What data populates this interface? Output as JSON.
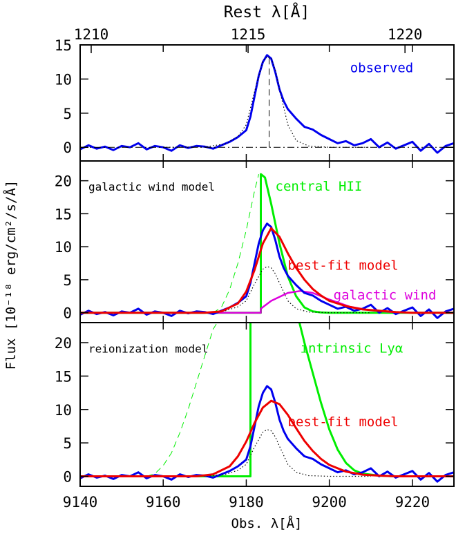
{
  "chart_data": {
    "type": "line",
    "top_axis_label": "Rest λ[Å]",
    "top_ticks": [
      1210,
      1215,
      1220
    ],
    "xlabel": "Obs. λ[Å]",
    "xlim": [
      9140,
      9230
    ],
    "x_ticks": [
      9140,
      9160,
      9180,
      9200,
      9220
    ],
    "ylabel": "Flux [10⁻¹⁸ erg/cm²/s/Å]",
    "panels": [
      {
        "id": "observed",
        "ylim": [
          -2,
          15
        ],
        "y_ticks": [
          0,
          5,
          10,
          15
        ],
        "annotations": [
          {
            "text": "observed",
            "color": "#0000ee",
            "x": 9205,
            "y": 11
          }
        ],
        "series": [
          {
            "name": "observed",
            "color": "#0000ee",
            "width": 3,
            "style": "solid",
            "x": [
              9140,
              9142,
              9144,
              9146,
              9148,
              9150,
              9152,
              9154,
              9156,
              9158,
              9160,
              9162,
              9164,
              9166,
              9168,
              9170,
              9172,
              9174,
              9176,
              9178,
              9180,
              9181,
              9182,
              9183,
              9184,
              9185,
              9186,
              9187,
              9188,
              9189,
              9190,
              9192,
              9194,
              9196,
              9198,
              9200,
              9202,
              9204,
              9206,
              9208,
              9210,
              9212,
              9214,
              9216,
              9218,
              9220,
              9222,
              9224,
              9226,
              9228,
              9230
            ],
            "y": [
              -0.3,
              0.3,
              -0.2,
              0.1,
              -0.4,
              0.2,
              0.0,
              0.6,
              -0.3,
              0.2,
              0.0,
              -0.5,
              0.3,
              -0.1,
              0.2,
              0.1,
              -0.2,
              0.3,
              0.8,
              1.5,
              2.5,
              4.5,
              7.5,
              10.5,
              12.5,
              13.5,
              13.0,
              11.0,
              8.5,
              6.8,
              5.6,
              4.2,
              3.0,
              2.6,
              1.8,
              1.2,
              0.6,
              0.9,
              0.3,
              0.6,
              1.2,
              0.0,
              0.7,
              -0.2,
              0.3,
              0.8,
              -0.5,
              0.5,
              -0.8,
              0.2,
              0.6
            ]
          },
          {
            "name": "",
            "color": "#000000",
            "width": 1.2,
            "style": "dotted",
            "x": [
              9160,
              9170,
              9175,
              9178,
              9180,
              9182,
              9184,
              9185,
              9186,
              9187,
              9188,
              9190,
              9192,
              9195,
              9200,
              9210
            ],
            "y": [
              0,
              0.05,
              0.5,
              1.6,
              3.3,
              8.2,
              12.6,
              13.3,
              13.0,
              11.3,
              8.5,
              3.3,
              1.0,
              0.2,
              0.0,
              0.0
            ]
          },
          {
            "name": "",
            "color": "#000000",
            "width": 1,
            "style": "dashdot",
            "x": [
              9140,
              9230
            ],
            "y": [
              0,
              0
            ]
          },
          {
            "name": "",
            "color": "#000000",
            "width": 1,
            "style": "dashed",
            "x": [
              9185.5,
              9185.5
            ],
            "y": [
              0,
              13.3
            ]
          }
        ]
      },
      {
        "id": "galactic-wind",
        "ylim": [
          -1.5,
          23
        ],
        "y_ticks": [
          0,
          5,
          10,
          15,
          20
        ],
        "annotations": [
          {
            "text": "galactic wind model",
            "color": "#000000",
            "x": 9142,
            "y": 18.5,
            "small": true
          },
          {
            "text": "central HII",
            "color": "#00ee00",
            "x": 9187,
            "y": 18.5
          },
          {
            "text": "best-fit model",
            "color": "#ee0000",
            "x": 9190,
            "y": 6.5
          },
          {
            "text": "galactic wind",
            "color": "#dd00dd",
            "x": 9201,
            "y": 2.0
          }
        ],
        "series": [
          {
            "name": "central HII",
            "color": "#00ee00",
            "width": 1,
            "style": "dashed",
            "x": [
              9172,
              9174,
              9176,
              9178,
              9180,
              9182,
              9183
            ],
            "y": [
              0,
              0.8,
              3.5,
              7.5,
              12.5,
              18.5,
              21
            ]
          },
          {
            "name": "central HII",
            "color": "#00ee00",
            "width": 3,
            "style": "solid",
            "x": [
              9140,
              9183.5,
              9183.5,
              9184.5,
              9186,
              9188,
              9190,
              9192,
              9194,
              9196,
              9198,
              9200,
              9230
            ],
            "y": [
              0,
              0,
              21,
              20.5,
              16.5,
              10.5,
              5.5,
              2.5,
              0.8,
              0.2,
              0.05,
              0,
              0
            ]
          },
          {
            "name": "galactic wind",
            "color": "#dd00dd",
            "width": 2.5,
            "style": "solid",
            "x": [
              9140,
              9183.5,
              9183.5,
              9186,
              9190,
              9193,
              9196,
              9200,
              9205,
              9210,
              9215,
              9220,
              9230
            ],
            "y": [
              0,
              0,
              0.6,
              1.8,
              3.0,
              3.3,
              3.0,
              2.0,
              0.9,
              0.35,
              0.1,
              0,
              0
            ]
          },
          {
            "name": "observed",
            "color": "#0000ee",
            "width": 3,
            "style": "solid",
            "x": [
              9140,
              9142,
              9144,
              9146,
              9148,
              9150,
              9152,
              9154,
              9156,
              9158,
              9160,
              9162,
              9164,
              9166,
              9168,
              9170,
              9172,
              9174,
              9176,
              9178,
              9180,
              9181,
              9182,
              9183,
              9184,
              9185,
              9186,
              9187,
              9188,
              9189,
              9190,
              9192,
              9194,
              9196,
              9198,
              9200,
              9202,
              9204,
              9206,
              9208,
              9210,
              9212,
              9214,
              9216,
              9218,
              9220,
              9222,
              9224,
              9226,
              9228,
              9230
            ],
            "y": [
              -0.3,
              0.3,
              -0.2,
              0.1,
              -0.4,
              0.2,
              0.0,
              0.6,
              -0.3,
              0.2,
              0.0,
              -0.5,
              0.3,
              -0.1,
              0.2,
              0.1,
              -0.2,
              0.3,
              0.8,
              1.5,
              2.5,
              4.5,
              7.5,
              10.5,
              12.5,
              13.5,
              13.0,
              11.0,
              8.5,
              6.8,
              5.6,
              4.2,
              3.0,
              2.6,
              1.8,
              1.2,
              0.6,
              0.9,
              0.3,
              0.6,
              1.2,
              0.0,
              0.7,
              -0.2,
              0.3,
              0.8,
              -0.5,
              0.5,
              -0.8,
              0.2,
              0.6
            ]
          },
          {
            "name": "",
            "color": "#000000",
            "width": 1.2,
            "style": "dotted",
            "x": [
              9160,
              9170,
              9175,
              9178,
              9180,
              9182,
              9184,
              9185,
              9186,
              9187,
              9188,
              9190,
              9192,
              9195,
              9200,
              9210
            ],
            "y": [
              0,
              0.02,
              0.3,
              0.9,
              1.8,
              4.4,
              6.6,
              7.0,
              6.8,
              5.9,
              4.5,
              1.8,
              0.6,
              0.1,
              0,
              0
            ]
          },
          {
            "name": "best-fit model",
            "color": "#ee0000",
            "width": 3,
            "style": "solid",
            "x": [
              9140,
              9170,
              9174,
              9178,
              9180,
              9182,
              9184,
              9186,
              9188,
              9190,
              9192,
              9194,
              9196,
              9198,
              9200,
              9204,
              9208,
              9212,
              9216,
              9220,
              9230
            ],
            "y": [
              0,
              0,
              0.2,
              1.4,
              3.2,
              6.5,
              10.5,
              12.8,
              11.5,
              9.0,
              6.8,
              5.0,
              3.6,
              2.6,
              1.8,
              1.0,
              0.5,
              0.3,
              0.1,
              0,
              0
            ]
          }
        ]
      },
      {
        "id": "reionization",
        "ylim": [
          -1.5,
          23
        ],
        "y_ticks": [
          0,
          5,
          10,
          15,
          20
        ],
        "annotations": [
          {
            "text": "reionization model",
            "color": "#000000",
            "x": 9142,
            "y": 18.5,
            "small": true
          },
          {
            "text": "intrinsic Lyα",
            "color": "#00ee00",
            "x": 9193,
            "y": 18.5
          },
          {
            "text": "best-fit model",
            "color": "#ee0000",
            "x": 9190,
            "y": 7.5
          }
        ],
        "series": [
          {
            "name": "intrinsic Lyα",
            "color": "#00ee00",
            "width": 1,
            "style": "dashed",
            "x": [
              9156,
              9158,
              9160,
              9162,
              9164,
              9166,
              9168,
              9170,
              9172,
              9173
            ],
            "y": [
              0,
              0.4,
              1.6,
              3.5,
              6.5,
              10.0,
              14.0,
              18.0,
              22.0,
              23.0
            ]
          },
          {
            "name": "intrinsic Lyα",
            "color": "#00ee00",
            "width": 3,
            "style": "solid",
            "x": [
              9140,
              9181,
              9181,
              9181.2
            ],
            "y": [
              0,
              0,
              23,
              23
            ]
          },
          {
            "name": "intrinsic Lyα",
            "color": "#00ee00",
            "width": 3,
            "style": "solid",
            "x": [
              9192.8,
              9194,
              9196,
              9198,
              9200,
              9202,
              9204,
              9206,
              9208,
              9212,
              9216,
              9220,
              9230
            ],
            "y": [
              23,
              20.0,
              15.5,
              11.0,
              7.0,
              4.0,
              2.0,
              0.9,
              0.4,
              0.1,
              0,
              0,
              0
            ]
          },
          {
            "name": "observed",
            "color": "#0000ee",
            "width": 3,
            "style": "solid",
            "x": [
              9140,
              9142,
              9144,
              9146,
              9148,
              9150,
              9152,
              9154,
              9156,
              9158,
              9160,
              9162,
              9164,
              9166,
              9168,
              9170,
              9172,
              9174,
              9176,
              9178,
              9180,
              9181,
              9182,
              9183,
              9184,
              9185,
              9186,
              9187,
              9188,
              9189,
              9190,
              9192,
              9194,
              9196,
              9198,
              9200,
              9202,
              9204,
              9206,
              9208,
              9210,
              9212,
              9214,
              9216,
              9218,
              9220,
              9222,
              9224,
              9226,
              9228,
              9230
            ],
            "y": [
              -0.3,
              0.3,
              -0.2,
              0.1,
              -0.4,
              0.2,
              0.0,
              0.6,
              -0.3,
              0.2,
              0.0,
              -0.5,
              0.3,
              -0.1,
              0.2,
              0.1,
              -0.2,
              0.3,
              0.8,
              1.5,
              2.5,
              4.5,
              7.5,
              10.5,
              12.5,
              13.5,
              13.0,
              11.0,
              8.5,
              6.8,
              5.6,
              4.2,
              3.0,
              2.6,
              1.8,
              1.2,
              0.6,
              0.9,
              0.3,
              0.6,
              1.2,
              0.0,
              0.7,
              -0.2,
              0.3,
              0.8,
              -0.5,
              0.5,
              -0.8,
              0.2,
              0.6
            ]
          },
          {
            "name": "",
            "color": "#000000",
            "width": 1.2,
            "style": "dotted",
            "x": [
              9160,
              9170,
              9175,
              9178,
              9180,
              9182,
              9184,
              9185,
              9186,
              9187,
              9188,
              9190,
              9192,
              9195,
              9200,
              9210
            ],
            "y": [
              0,
              0.02,
              0.3,
              0.9,
              1.8,
              4.4,
              6.6,
              7.0,
              6.8,
              5.9,
              4.5,
              1.8,
              0.6,
              0.1,
              0,
              0
            ]
          },
          {
            "name": "best-fit model",
            "color": "#ee0000",
            "width": 3,
            "style": "solid",
            "x": [
              9140,
              9168,
              9172,
              9176,
              9178,
              9180,
              9182,
              9184,
              9186,
              9188,
              9190,
              9192,
              9194,
              9196,
              9198,
              9200,
              9204,
              9208,
              9212,
              9216,
              9220,
              9230
            ],
            "y": [
              0,
              0,
              0.3,
              1.5,
              3.0,
              5.2,
              8.0,
              10.3,
              11.3,
              10.8,
              9.2,
              7.2,
              5.3,
              3.8,
              2.6,
              1.7,
              0.7,
              0.25,
              0.1,
              0,
              0,
              0
            ]
          }
        ]
      }
    ]
  }
}
